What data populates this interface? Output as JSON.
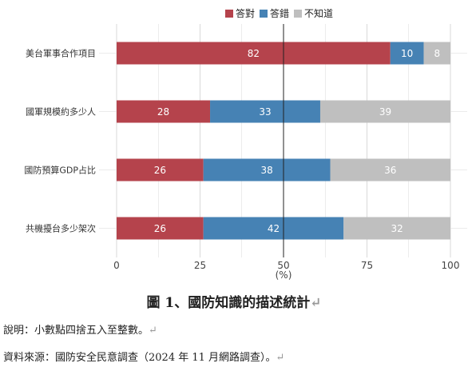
{
  "chart_data": {
    "type": "bar",
    "orientation": "horizontal",
    "stacked": true,
    "categories": [
      "美台軍事合作項目",
      "國軍規模約多少人",
      "國防預算GDP占比",
      "共機擾台多少架次"
    ],
    "series": [
      {
        "name": "答對",
        "values": [
          82,
          28,
          26,
          26
        ],
        "color": "#b5434c"
      },
      {
        "name": "答錯",
        "values": [
          10,
          33,
          38,
          42
        ],
        "color": "#4682b4"
      },
      {
        "name": "不知道",
        "values": [
          8,
          39,
          36,
          32
        ],
        "color": "#bfbfbf"
      }
    ],
    "xticks": [
      "0",
      "25",
      "50",
      "75",
      "100"
    ],
    "xlabel": "(%)",
    "xlim": [
      0,
      100
    ],
    "reference_line": 50,
    "grid": true,
    "legend": "top"
  },
  "caption": "圖 1、國防知識的描述統計",
  "notes": [
    "說明：小數點四捨五入至整數。",
    "資料來源：國防安全民意調查（2024 年 11 月網路調查）。"
  ],
  "return_mark": "↵"
}
